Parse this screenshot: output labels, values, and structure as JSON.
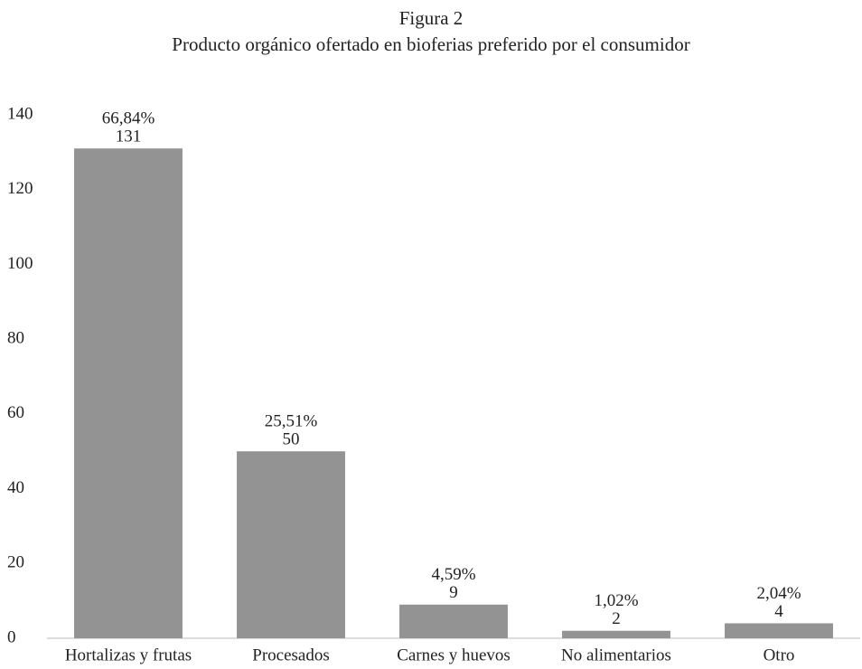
{
  "chart_data": {
    "type": "bar",
    "title": "Figura 2",
    "subtitle": "Producto orgánico ofertado en bioferias preferido por el consumidor",
    "categories": [
      "Hortalizas y frutas",
      "Procesados",
      "Carnes y huevos",
      "No alimentarios",
      "Otro"
    ],
    "values": [
      131,
      50,
      9,
      2,
      4
    ],
    "share_labels": [
      "66,84%",
      "25,51%",
      "4,59%",
      "1,02%",
      "2,04%"
    ],
    "color": "#939393",
    "ylim": [
      0,
      140
    ],
    "yticks": [
      0,
      20,
      40,
      60,
      80,
      100,
      120,
      140
    ],
    "grid": false
  }
}
